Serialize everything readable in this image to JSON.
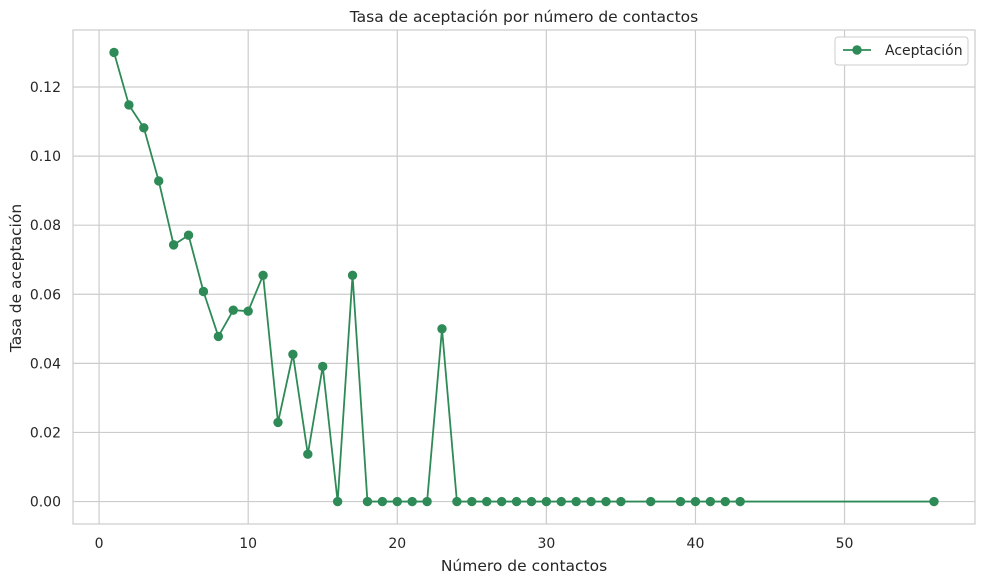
{
  "chart_data": {
    "type": "line",
    "title": "Tasa de aceptación por número de contactos",
    "xlabel": "Número de contactos",
    "ylabel": "Tasa de aceptación",
    "xlim": [
      -1.75,
      58.75
    ],
    "ylim": [
      -0.0065,
      0.1365
    ],
    "xticks": [
      0,
      10,
      20,
      30,
      40,
      50
    ],
    "yticks": [
      0.0,
      0.02,
      0.04,
      0.06,
      0.08,
      0.1,
      0.12
    ],
    "ytick_labels": [
      "0.00",
      "0.02",
      "0.04",
      "0.06",
      "0.08",
      "0.10",
      "0.12"
    ],
    "grid": true,
    "legend_position": "top-right",
    "colors": {
      "series": "#2e8b57",
      "grid": "#cccccc",
      "spine": "#cccccc",
      "text": "#262626"
    },
    "series": [
      {
        "name": "Aceptación",
        "marker": "circle",
        "x": [
          1,
          2,
          3,
          4,
          5,
          6,
          7,
          8,
          9,
          10,
          11,
          12,
          13,
          14,
          15,
          16,
          17,
          18,
          19,
          20,
          21,
          22,
          23,
          24,
          25,
          26,
          27,
          28,
          29,
          30,
          31,
          32,
          33,
          34,
          35,
          37,
          39,
          40,
          41,
          42,
          43,
          56
        ],
        "y": [
          0.13,
          0.1148,
          0.1082,
          0.0928,
          0.0743,
          0.0771,
          0.0608,
          0.0478,
          0.0554,
          0.0551,
          0.0655,
          0.0229,
          0.0426,
          0.0137,
          0.0391,
          0.0,
          0.0655,
          0.0,
          0.0,
          0.0,
          0.0,
          0.0,
          0.05,
          0.0,
          0.0,
          0.0,
          0.0,
          0.0,
          0.0,
          0.0,
          0.0,
          0.0,
          0.0,
          0.0,
          0.0,
          0.0,
          0.0,
          0.0,
          0.0,
          0.0,
          0.0,
          0.0
        ]
      }
    ]
  }
}
